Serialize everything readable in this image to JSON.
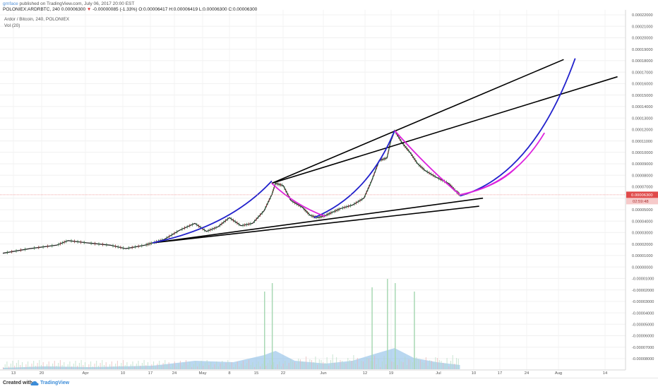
{
  "header": {
    "author": "grnface",
    "published": " published on TradingView.com, July 06, 2017 20:00 EST",
    "symbol": "POLONIEX:ARDRBTC, 240",
    "last": "0.00006300",
    "change": "-0.00000085 (-1.33%)",
    "open": "O:0.00006417",
    "high": "H:0.00006419",
    "low": "L:0.00006300",
    "close": "C:0.00006300"
  },
  "legend": {
    "title": "Ardor / Bitcoin, 240, POLONIEX",
    "indicator": "Vol (20)"
  },
  "footer": {
    "created": "Created with",
    "brand": "TradingView"
  },
  "colors": {
    "price_line": "#2b2b2b",
    "blue_curve": "#2222cc",
    "magenta_curve": "#dd22dd",
    "trendline": "#000000",
    "volume": "#7fb7e3",
    "last_price_badge": "#e04a4a",
    "brand": "#3b8cd8"
  },
  "chart_data": {
    "type": "line",
    "x_ticks": [
      "13",
      "20",
      "Apr",
      "10",
      "17",
      "24",
      "May",
      "8",
      "15",
      "22",
      "Jun",
      "12",
      "19",
      "Jul",
      "10",
      "17",
      "24",
      "Aug",
      "14"
    ],
    "y_ticks": [
      "0.00022000",
      "0.00021000",
      "0.00020000",
      "0.00019000",
      "0.00018000",
      "0.00017000",
      "0.00016000",
      "0.00015000",
      "0.00014000",
      "0.00013000",
      "0.00012000",
      "0.00011000",
      "0.00010000",
      "0.00009000",
      "0.00008000",
      "0.00007000",
      "0.00006300",
      "0.00005000",
      "0.00004000",
      "0.00003000",
      "0.00002000",
      "0.00001000",
      "0.00000000",
      "-0.00001000",
      "-0.00002000",
      "-0.00003000",
      "-0.00004000",
      "-0.00005000",
      "-0.00006000",
      "-0.00007000",
      "-0.00008000"
    ],
    "ylim": [
      -8e-05,
      0.00022
    ],
    "last_price_label": "0.00006300",
    "countdown_label": "02:59:48",
    "price_series": [
      [
        "2017-03-09",
        1.2e-05
      ],
      [
        "2017-03-16",
        1.6e-05
      ],
      [
        "2017-03-23",
        1.9e-05
      ],
      [
        "2017-03-26",
        2.3e-05
      ],
      [
        "2017-03-31",
        2.1e-05
      ],
      [
        "2017-04-06",
        1.9e-05
      ],
      [
        "2017-04-10",
        1.6e-05
      ],
      [
        "2017-04-15",
        1.9e-05
      ],
      [
        "2017-04-17",
        2.1e-05
      ],
      [
        "2017-04-20",
        2.4e-05
      ],
      [
        "2017-04-24",
        3.2e-05
      ],
      [
        "2017-04-28",
        3.8e-05
      ],
      [
        "2017-05-01",
        3.1e-05
      ],
      [
        "2017-05-04",
        3.5e-05
      ],
      [
        "2017-05-07",
        4.3e-05
      ],
      [
        "2017-05-10",
        3.6e-05
      ],
      [
        "2017-05-13",
        3.8e-05
      ],
      [
        "2017-05-16",
        4.9e-05
      ],
      [
        "2017-05-18",
        6.3e-05
      ],
      [
        "2017-05-19",
        7.3e-05
      ],
      [
        "2017-05-21",
        7.1e-05
      ],
      [
        "2017-05-23",
        5.8e-05
      ],
      [
        "2017-05-26",
        5.2e-05
      ],
      [
        "2017-05-28",
        4.5e-05
      ],
      [
        "2017-05-30",
        4.3e-05
      ],
      [
        "2017-06-01",
        4.5e-05
      ],
      [
        "2017-06-03",
        4.8e-05
      ],
      [
        "2017-06-05",
        5.1e-05
      ],
      [
        "2017-06-08",
        5.4e-05
      ],
      [
        "2017-06-11",
        6e-05
      ],
      [
        "2017-06-13",
        7.5e-05
      ],
      [
        "2017-06-15",
        9.3e-05
      ],
      [
        "2017-06-17",
        9.5e-05
      ],
      [
        "2017-06-18",
        0.00011
      ],
      [
        "2017-06-19",
        0.000119
      ],
      [
        "2017-06-21",
        0.000108
      ],
      [
        "2017-06-23",
        0.0001
      ],
      [
        "2017-06-25",
        9e-05
      ],
      [
        "2017-06-27",
        8.4e-05
      ],
      [
        "2017-06-30",
        7.8e-05
      ],
      [
        "2017-07-03",
        7.3e-05
      ],
      [
        "2017-07-05",
        6.6e-05
      ],
      [
        "2017-07-06",
        6.3e-05
      ]
    ],
    "annotations": [
      {
        "kind": "trendline",
        "points": [
          [
            "2017-05-18",
            7.3e-05
          ],
          [
            "2017-08-02",
            0.000181
          ]
        ]
      },
      {
        "kind": "trendline",
        "points": [
          [
            "2017-05-18",
            7.3e-05
          ],
          [
            "2017-08-16",
            0.000166
          ]
        ]
      },
      {
        "kind": "trendline",
        "points": [
          [
            "2017-04-17",
            2.1e-05
          ],
          [
            "2017-07-12",
            6e-05
          ]
        ]
      },
      {
        "kind": "trendline",
        "points": [
          [
            "2017-04-17",
            2.1e-05
          ],
          [
            "2017-07-11",
            5.3e-05
          ]
        ]
      },
      {
        "kind": "blue-curve",
        "points": [
          [
            "2017-04-17",
            2.1e-05
          ],
          [
            "2017-05-07",
            3.5e-05
          ],
          [
            "2017-05-18",
            7.5e-05
          ]
        ]
      },
      {
        "kind": "blue-curve",
        "points": [
          [
            "2017-05-29",
            4.3e-05
          ],
          [
            "2017-06-12",
            6.2e-05
          ],
          [
            "2017-06-19",
            0.000119
          ]
        ]
      },
      {
        "kind": "blue-curve",
        "points": [
          [
            "2017-07-06",
            6.2e-05
          ],
          [
            "2017-07-25",
            8e-05
          ],
          [
            "2017-08-05",
            0.000182
          ]
        ]
      },
      {
        "kind": "magenta-curve",
        "points": [
          [
            "2017-05-18",
            7.3e-05
          ],
          [
            "2017-05-24",
            5.4e-05
          ],
          [
            "2017-06-01",
            4.4e-05
          ]
        ]
      },
      {
        "kind": "magenta-curve",
        "points": [
          [
            "2017-06-19",
            0.000119
          ],
          [
            "2017-06-28",
            8.5e-05
          ],
          [
            "2017-07-06",
            6.3e-05
          ]
        ]
      },
      {
        "kind": "magenta-curve",
        "points": [
          [
            "2017-07-06",
            6.3e-05
          ],
          [
            "2017-07-20",
            7.2e-05
          ],
          [
            "2017-07-28",
            0.000117
          ]
        ]
      },
      {
        "kind": "magenta-curve",
        "points": [
          [
            "2017-07-06",
            6.3e-05
          ],
          [
            "2017-07-16",
            7e-05
          ],
          [
            "2017-07-21",
            8.8e-05
          ]
        ]
      }
    ],
    "volume_spikes": [
      [
        "2017-05-16",
        5e-05
      ],
      [
        "2017-05-18",
        6e-05
      ],
      [
        "2017-06-13",
        5.5e-05
      ],
      [
        "2017-06-17",
        6.5e-05
      ],
      [
        "2017-06-19",
        6e-05
      ],
      [
        "2017-06-24",
        5e-05
      ]
    ],
    "grid": true
  }
}
